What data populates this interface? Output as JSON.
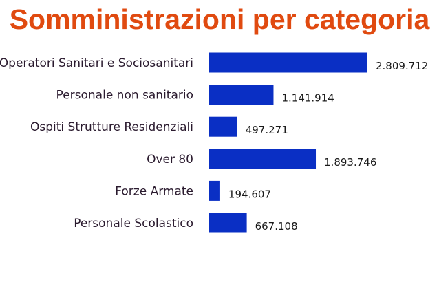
{
  "title": "Somministrazioni per categoria",
  "colors": {
    "title": "#e04a10",
    "bar": "#0a2fc4"
  },
  "chart_data": {
    "type": "bar",
    "orientation": "horizontal",
    "title": "Somministrazioni per categoria",
    "categories": [
      "Operatori Sanitari e Sociosanitari",
      "Personale non sanitario",
      "Ospiti Strutture Residenziali",
      "Over 80",
      "Forze Armate",
      "Personale Scolastico"
    ],
    "values": [
      2809712,
      1141914,
      497271,
      1893746,
      194607,
      667108
    ],
    "value_labels": [
      "2.809.712",
      "1.141.914",
      "497.271",
      "1.893.746",
      "194.607",
      "667.108"
    ],
    "xlim": [
      0,
      2809712
    ],
    "grid": false,
    "legend": "none"
  }
}
